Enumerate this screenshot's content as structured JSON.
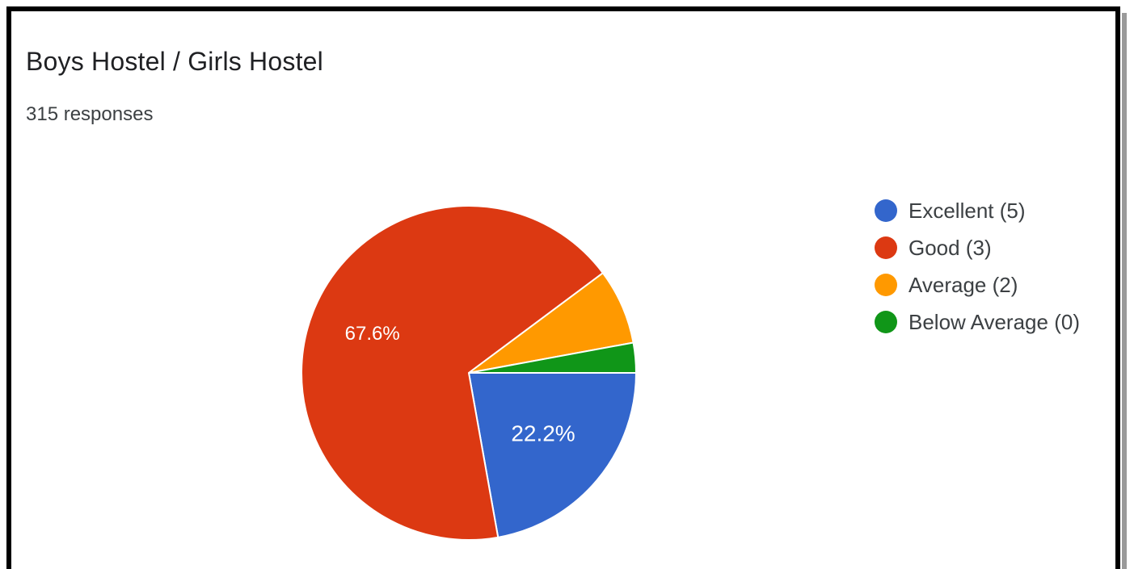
{
  "card": {
    "title": "Boys Hostel / Girls Hostel",
    "responses": "315 responses"
  },
  "chart_data": {
    "type": "pie",
    "title": "Boys Hostel / Girls Hostel",
    "slices": [
      {
        "label": "Excellent (5)",
        "percent": 22.2,
        "color": "#3366cc",
        "data_label": "22.2%"
      },
      {
        "label": "Good (3)",
        "percent": 67.6,
        "color": "#dc3912",
        "data_label": "67.6%"
      },
      {
        "label": "Average (2)",
        "percent": 7.3,
        "color": "#ff9900",
        "data_label": ""
      },
      {
        "label": "Below Average (0)",
        "percent": 2.9,
        "color": "#109618",
        "data_label": ""
      }
    ],
    "legend_position": "right"
  }
}
